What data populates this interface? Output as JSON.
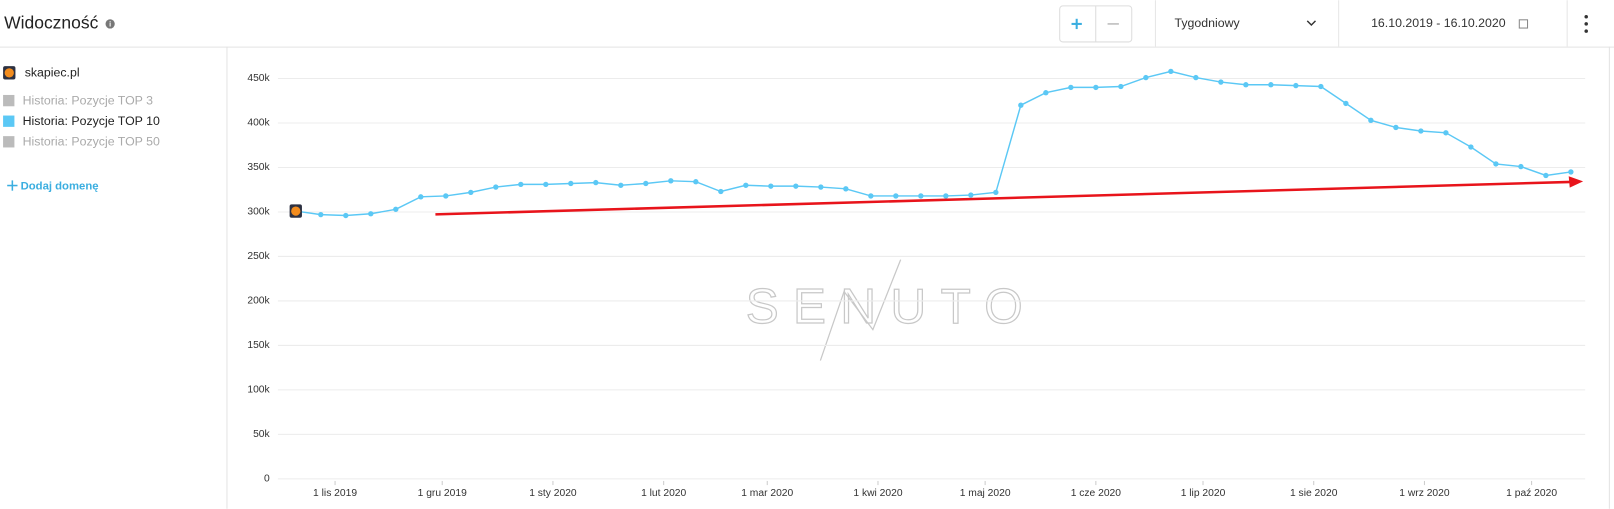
{
  "header": {
    "title": "Widoczność",
    "interval": "Tygodniowy",
    "date_range": "16.10.2019 - 16.10.2020"
  },
  "sidebar": {
    "domain": "skapiec.pl",
    "other_series": [
      "Historia: Pozycje TOP 3",
      "Historia: Pozycje TOP 50"
    ],
    "add_domain": "Dodaj domenę"
  },
  "watermark": "SENUTO",
  "chart_data": {
    "type": "line",
    "x": [
      "2019-10-21",
      "2019-10-28",
      "2019-11-04",
      "2019-11-11",
      "2019-11-18",
      "2019-11-25",
      "2019-12-02",
      "2019-12-09",
      "2019-12-16",
      "2019-12-23",
      "2019-12-30",
      "2020-01-06",
      "2020-01-13",
      "2020-01-20",
      "2020-01-27",
      "2020-02-03",
      "2020-02-10",
      "2020-02-17",
      "2020-02-24",
      "2020-03-02",
      "2020-03-09",
      "2020-03-16",
      "2020-03-23",
      "2020-03-30",
      "2020-04-06",
      "2020-04-13",
      "2020-04-20",
      "2020-04-27",
      "2020-05-04",
      "2020-05-11",
      "2020-05-18",
      "2020-05-25",
      "2020-06-01",
      "2020-06-08",
      "2020-06-15",
      "2020-06-22",
      "2020-06-29",
      "2020-07-06",
      "2020-07-13",
      "2020-07-20",
      "2020-07-27",
      "2020-08-03",
      "2020-08-10",
      "2020-08-17",
      "2020-08-24",
      "2020-08-31",
      "2020-09-07",
      "2020-09-14",
      "2020-09-21",
      "2020-09-28",
      "2020-10-05",
      "2020-10-12"
    ],
    "series": [
      {
        "name": "Historia: Pozycje TOP 10",
        "color": "#5bc8f5",
        "values": [
          301000,
          297000,
          296000,
          298000,
          303000,
          317000,
          318000,
          322000,
          328000,
          331000,
          331000,
          332000,
          333000,
          330000,
          332000,
          335000,
          334000,
          323000,
          330000,
          329000,
          329000,
          328000,
          326000,
          318000,
          318000,
          318000,
          318000,
          319000,
          322000,
          420000,
          434000,
          440000,
          440000,
          441000,
          451000,
          458000,
          451000,
          446000,
          443000,
          443000,
          442000,
          441000,
          422000,
          403000,
          395000,
          391000,
          389000,
          373000,
          354000,
          351000,
          341000,
          345000
        ]
      }
    ],
    "xlim": [
      "2019-10-16",
      "2020-10-16"
    ],
    "xticks": [
      {
        "value": "2019-11-01",
        "label": "1 lis 2019"
      },
      {
        "value": "2019-12-01",
        "label": "1 gru 2019"
      },
      {
        "value": "2020-01-01",
        "label": "1 sty 2020"
      },
      {
        "value": "2020-02-01",
        "label": "1 lut 2020"
      },
      {
        "value": "2020-03-01",
        "label": "1 mar 2020"
      },
      {
        "value": "2020-04-01",
        "label": "1 kwi 2020"
      },
      {
        "value": "2020-05-01",
        "label": "1 maj 2020"
      },
      {
        "value": "2020-06-01",
        "label": "1 cze 2020"
      },
      {
        "value": "2020-07-01",
        "label": "1 lip 2020"
      },
      {
        "value": "2020-08-01",
        "label": "1 sie 2020"
      },
      {
        "value": "2020-09-01",
        "label": "1 wrz 2020"
      },
      {
        "value": "2020-10-01",
        "label": "1 paź 2020"
      }
    ],
    "ylim": [
      0,
      475000
    ],
    "yticks": [
      0,
      {
        "value": 50000,
        "label": "50k"
      },
      {
        "value": 100000,
        "label": "100k"
      },
      {
        "value": 150000,
        "label": "150k"
      },
      {
        "value": 200000,
        "label": "200k"
      },
      {
        "value": 250000,
        "label": "250k"
      },
      {
        "value": 300000,
        "label": "300k"
      },
      {
        "value": 350000,
        "label": "350k"
      },
      {
        "value": 400000,
        "label": "400k"
      },
      {
        "value": 450000,
        "label": "450k"
      }
    ],
    "grid": true
  }
}
